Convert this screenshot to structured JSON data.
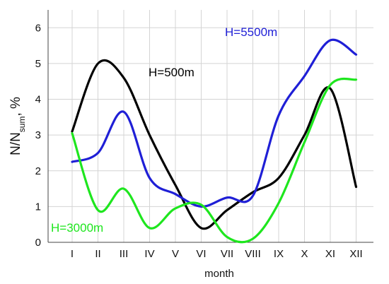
{
  "chart_data": {
    "type": "line",
    "categories": [
      "I",
      "II",
      "III",
      "IV",
      "V",
      "VI",
      "VII",
      "VIII",
      "IX",
      "X",
      "XI",
      "XII"
    ],
    "xlabel": "month",
    "ylabel": {
      "base": "N/N",
      "subscript": "sum",
      "suffix": ", %"
    },
    "ylim": [
      0,
      6.5
    ],
    "yticks": [
      0,
      1,
      2,
      3,
      4,
      5,
      6
    ],
    "grid": true,
    "series": [
      {
        "name": "H=500m",
        "color": "#000000",
        "values": [
          3.1,
          5.0,
          4.6,
          3.0,
          1.6,
          0.4,
          0.9,
          1.4,
          1.8,
          3.0,
          4.3,
          1.55
        ],
        "label_near": 2
      },
      {
        "name": "H=5500m",
        "color": "#1f1fd6",
        "values": [
          2.25,
          2.5,
          3.65,
          1.8,
          1.35,
          1.0,
          1.25,
          1.3,
          3.55,
          4.65,
          5.65,
          5.25
        ],
        "label_near": 9
      },
      {
        "name": "H=3000m",
        "color": "#1ee61e",
        "values": [
          3.05,
          0.9,
          1.5,
          0.4,
          0.95,
          1.05,
          0.15,
          0.1,
          1.1,
          2.8,
          4.4,
          4.55
        ],
        "label_near": 0
      }
    ]
  }
}
